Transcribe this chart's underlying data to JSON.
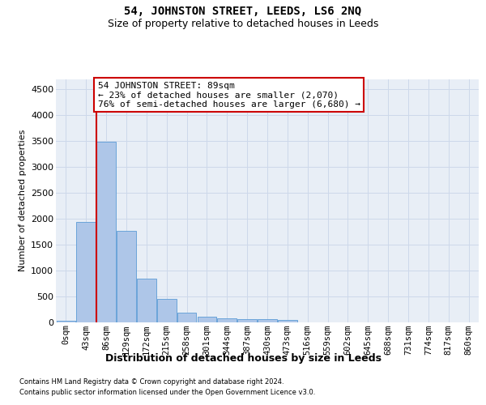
{
  "title": "54, JOHNSTON STREET, LEEDS, LS6 2NQ",
  "subtitle": "Size of property relative to detached houses in Leeds",
  "xlabel": "Distribution of detached houses by size in Leeds",
  "ylabel": "Number of detached properties",
  "footer_line1": "Contains HM Land Registry data © Crown copyright and database right 2024.",
  "footer_line2": "Contains public sector information licensed under the Open Government Licence v3.0.",
  "categories": [
    "0sqm",
    "43sqm",
    "86sqm",
    "129sqm",
    "172sqm",
    "215sqm",
    "258sqm",
    "301sqm",
    "344sqm",
    "387sqm",
    "430sqm",
    "473sqm",
    "516sqm",
    "559sqm",
    "602sqm",
    "645sqm",
    "688sqm",
    "731sqm",
    "774sqm",
    "817sqm",
    "860sqm"
  ],
  "bar_values": [
    30,
    1930,
    3490,
    1760,
    840,
    450,
    175,
    100,
    70,
    50,
    50,
    35,
    0,
    0,
    0,
    0,
    0,
    0,
    0,
    0,
    0
  ],
  "bar_color": "#aec6e8",
  "bar_edge_color": "#5b9bd5",
  "ylim": [
    0,
    4700
  ],
  "yticks": [
    0,
    500,
    1000,
    1500,
    2000,
    2500,
    3000,
    3500,
    4000,
    4500
  ],
  "property_line_color": "#cc0000",
  "annotation_line1": "54 JOHNSTON STREET: 89sqm",
  "annotation_line2": "← 23% of detached houses are smaller (2,070)",
  "annotation_line3": "76% of semi-detached houses are larger (6,680) →",
  "grid_color": "#cdd8ea",
  "background_color": "#e8eef6",
  "title_fontsize": 10,
  "subtitle_fontsize": 9,
  "ylabel_fontsize": 8,
  "xlabel_fontsize": 9,
  "tick_fontsize": 7.5,
  "ytick_fontsize": 8
}
